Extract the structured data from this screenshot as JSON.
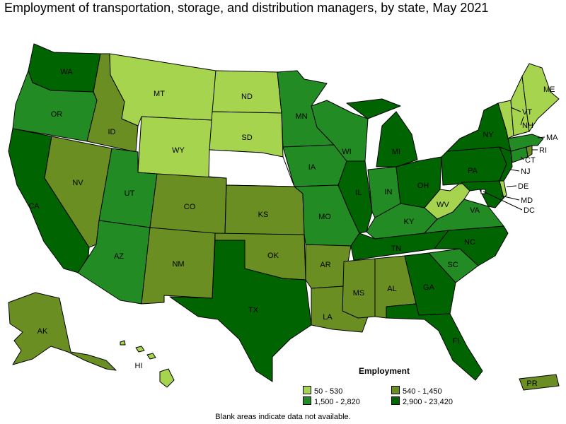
{
  "title": "Employment of transportation, storage, and distribution managers, by state, May 2021",
  "colors": {
    "c1": "#a6d44f",
    "c2": "#6b8e23",
    "c3": "#238b23",
    "c4": "#006400",
    "na": "#ffffff"
  },
  "legend": {
    "title": "Employment",
    "items": [
      {
        "label": "50 - 530",
        "color": "#a6d44f"
      },
      {
        "label": "540 - 1,450",
        "color": "#6b8e23"
      },
      {
        "label": "1,500 - 2,820",
        "color": "#238b23"
      },
      {
        "label": "2,900 - 23,420",
        "color": "#006400"
      }
    ]
  },
  "footnote": "Blank areas indicate data not available.",
  "states": [
    {
      "abbr": "WA",
      "class": "2,900 - 23,420"
    },
    {
      "abbr": "OR",
      "class": "1,500 - 2,820"
    },
    {
      "abbr": "CA",
      "class": "2,900 - 23,420"
    },
    {
      "abbr": "ID",
      "class": "540 - 1,450"
    },
    {
      "abbr": "NV",
      "class": "540 - 1,450"
    },
    {
      "abbr": "MT",
      "class": "50 - 530"
    },
    {
      "abbr": "WY",
      "class": "50 - 530"
    },
    {
      "abbr": "UT",
      "class": "1,500 - 2,820"
    },
    {
      "abbr": "AZ",
      "class": "1,500 - 2,820"
    },
    {
      "abbr": "CO",
      "class": "540 - 1,450"
    },
    {
      "abbr": "NM",
      "class": "540 - 1,450"
    },
    {
      "abbr": "ND",
      "class": "50 - 530"
    },
    {
      "abbr": "SD",
      "class": "50 - 530"
    },
    {
      "abbr": "NE",
      "class": "n/a"
    },
    {
      "abbr": "KS",
      "class": "540 - 1,450"
    },
    {
      "abbr": "OK",
      "class": "540 - 1,450"
    },
    {
      "abbr": "TX",
      "class": "2,900 - 23,420"
    },
    {
      "abbr": "MN",
      "class": "1,500 - 2,820"
    },
    {
      "abbr": "IA",
      "class": "1,500 - 2,820"
    },
    {
      "abbr": "MO",
      "class": "1,500 - 2,820"
    },
    {
      "abbr": "AR",
      "class": "540 - 1,450"
    },
    {
      "abbr": "LA",
      "class": "540 - 1,450"
    },
    {
      "abbr": "WI",
      "class": "1,500 - 2,820"
    },
    {
      "abbr": "IL",
      "class": "2,900 - 23,420"
    },
    {
      "abbr": "MI",
      "class": "2,900 - 23,420"
    },
    {
      "abbr": "IN",
      "class": "1,500 - 2,820"
    },
    {
      "abbr": "OH",
      "class": "2,900 - 23,420"
    },
    {
      "abbr": "KY",
      "class": "1,500 - 2,820"
    },
    {
      "abbr": "TN",
      "class": "2,900 - 23,420"
    },
    {
      "abbr": "MS",
      "class": "540 - 1,450"
    },
    {
      "abbr": "AL",
      "class": "540 - 1,450"
    },
    {
      "abbr": "GA",
      "class": "2,900 - 23,420"
    },
    {
      "abbr": "FL",
      "class": "2,900 - 23,420"
    },
    {
      "abbr": "SC",
      "class": "1,500 - 2,820"
    },
    {
      "abbr": "NC",
      "class": "2,900 - 23,420"
    },
    {
      "abbr": "VA",
      "class": "1,500 - 2,820"
    },
    {
      "abbr": "WV",
      "class": "50 - 530"
    },
    {
      "abbr": "PA",
      "class": "2,900 - 23,420"
    },
    {
      "abbr": "NY",
      "class": "2,900 - 23,420"
    },
    {
      "abbr": "NJ",
      "class": "2,900 - 23,420"
    },
    {
      "abbr": "DE",
      "class": "50 - 530"
    },
    {
      "abbr": "MD",
      "class": "2,900 - 23,420"
    },
    {
      "abbr": "DC",
      "class": "n/a"
    },
    {
      "abbr": "CT",
      "class": "1,500 - 2,820"
    },
    {
      "abbr": "RI",
      "class": "540 - 1,450"
    },
    {
      "abbr": "MA",
      "class": "1,500 - 2,820"
    },
    {
      "abbr": "VT",
      "class": "50 - 530"
    },
    {
      "abbr": "NH",
      "class": "50 - 530"
    },
    {
      "abbr": "ME",
      "class": "50 - 530"
    },
    {
      "abbr": "AK",
      "class": "540 - 1,450"
    },
    {
      "abbr": "HI",
      "class": "50 - 530"
    },
    {
      "abbr": "PR",
      "class": "540 - 1,450"
    }
  ]
}
